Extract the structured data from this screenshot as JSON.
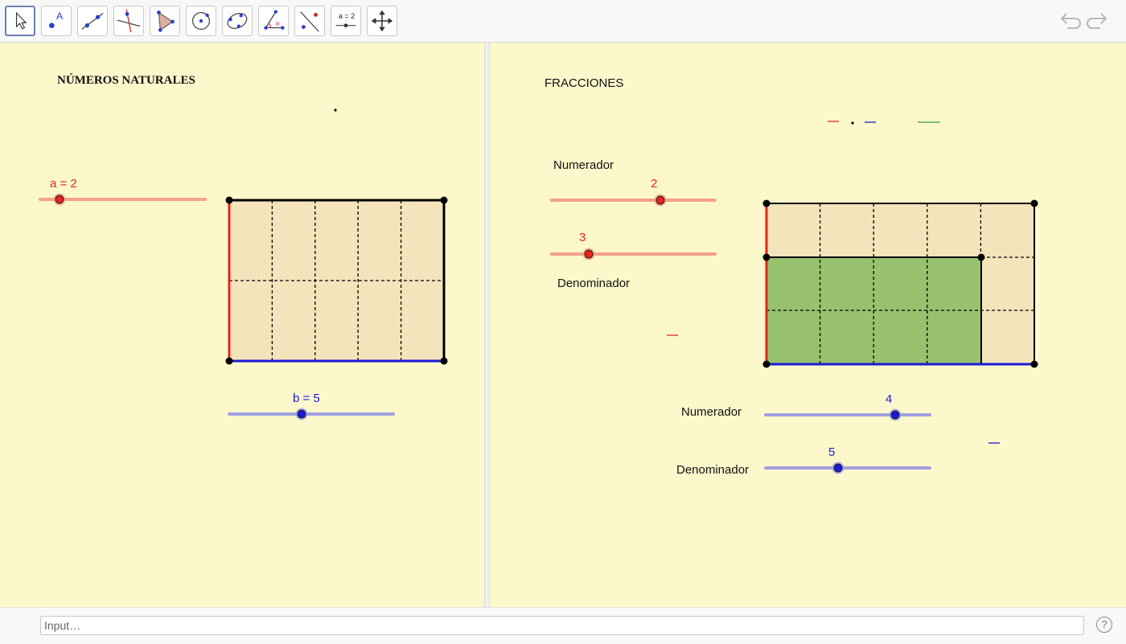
{
  "toolbar": {
    "tools": [
      "move-tool",
      "point-tool",
      "line-tool",
      "perpendicular-line-tool",
      "polygon-tool",
      "circle-center-point-tool",
      "conic-five-points-tool",
      "angle-tool",
      "reflect-about-line-tool",
      "slider-tool",
      "move-graphics-view-tool"
    ],
    "slider_tool_text": "a = 2",
    "undo": "undo-icon",
    "redo": "redo-icon"
  },
  "left": {
    "title": "NÚMEROS NATURALES",
    "slider_a_label": "a = 2",
    "slider_b_label": "b = 5",
    "slider_a": {
      "min": 0,
      "max": 10,
      "value": 2
    },
    "slider_b": {
      "min": 0,
      "max": 10,
      "value": 5
    }
  },
  "right": {
    "title": "FRACCIONES",
    "num1_label": "Numerador",
    "num1_value": "2",
    "den1_value": "3",
    "den1_label": "Denominador",
    "num2_label": "Numerador",
    "num2_value": "4",
    "den2_value": "5",
    "den2_label": "Denominador"
  },
  "colors": {
    "red": "#e8241c",
    "blue": "#1a1ad8",
    "fill": "#f4e4bc",
    "green": "#98c16e",
    "background": "#fdf8cc"
  },
  "input": {
    "placeholder": "Input…"
  },
  "help": "?"
}
